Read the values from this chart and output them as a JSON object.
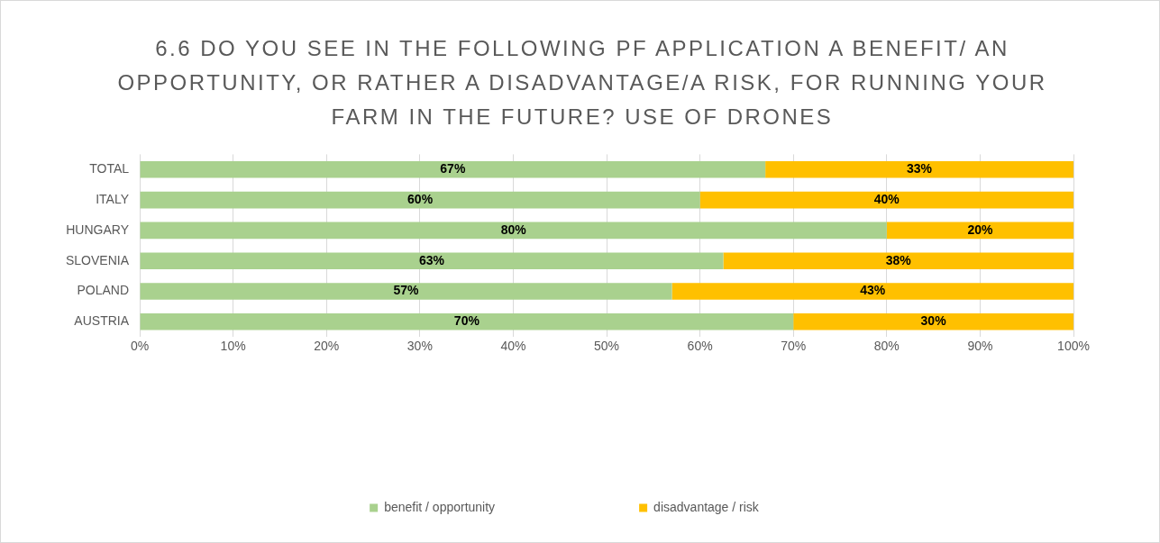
{
  "chart_data": {
    "type": "bar",
    "orientation": "horizontal",
    "stacked": true,
    "title": "6.6 DO YOU SEE IN THE FOLLOWING PF APPLICATION A BENEFIT/ AN OPPORTUNITY, OR RATHER A DISADVANTAGE/A RISK, FOR RUNNING YOUR FARM IN THE FUTURE? USE OF DRONES",
    "categories": [
      "TOTAL",
      "ITALY",
      "HUNGARY",
      "SLOVENIA",
      "POLAND",
      "AUSTRIA"
    ],
    "series": [
      {
        "name": "benefit / opportunity",
        "color": "#a9d18e",
        "values": [
          67,
          60,
          80,
          62.5,
          57,
          70
        ],
        "value_labels": [
          "67%",
          "60%",
          "80%",
          "63%",
          "57%",
          "70%"
        ]
      },
      {
        "name": "disadvantage / risk",
        "color": "#ffc000",
        "values": [
          33,
          40,
          20,
          37.5,
          43,
          30
        ],
        "value_labels": [
          "33%",
          "40%",
          "20%",
          "38%",
          "43%",
          "30%"
        ]
      }
    ],
    "xlim": [
      0,
      100
    ],
    "xticks": [
      {
        "value": 0,
        "label": "0%"
      },
      {
        "value": 10,
        "label": "10%"
      },
      {
        "value": 20,
        "label": "20%"
      },
      {
        "value": 30,
        "label": "30%"
      },
      {
        "value": 40,
        "label": "40%"
      },
      {
        "value": 50,
        "label": "50%"
      },
      {
        "value": 60,
        "label": "60%"
      },
      {
        "value": 70,
        "label": "70%"
      },
      {
        "value": 80,
        "label": "80%"
      },
      {
        "value": 90,
        "label": "90%"
      },
      {
        "value": 100,
        "label": "100%"
      }
    ],
    "grid": "x",
    "legend": "bottom"
  }
}
